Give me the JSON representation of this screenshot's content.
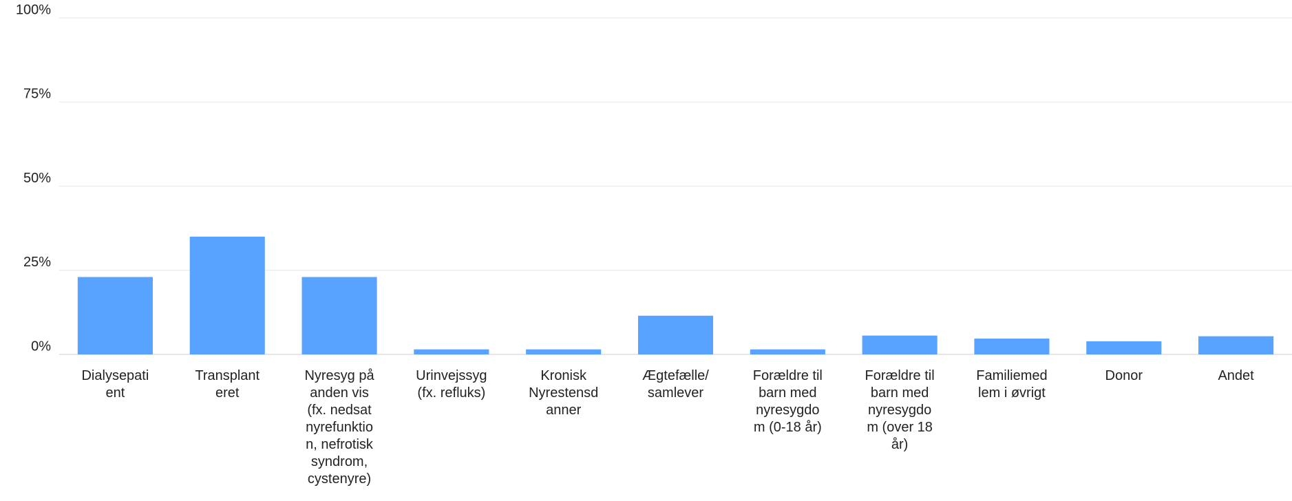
{
  "chart_data": {
    "type": "bar",
    "categories": [
      "Dialysepati\nent",
      "Transplant\neret",
      "Nyresyg på\nanden vis\n(fx. nedsat\nnyrefunktio\nn, nefrotisk\nsyndrom,\ncystenyre)",
      "Urinvejssyg\n(fx. refluks)",
      "Kronisk\nNyrestensd\nanner",
      "Ægtefælle/\nsamlever",
      "Forældre til\nbarn med\nnyresygdo\nm (0-18 år)",
      "Forældre til\nbarn med\nnyresygdo\nm (over 18\når)",
      "Familiemed\nlem i øvrigt",
      "Donor",
      "Andet"
    ],
    "values": [
      23,
      35,
      23,
      1.5,
      1.5,
      11.5,
      1.5,
      5.6,
      4.7,
      3.9,
      5.4
    ],
    "color": "#57a3ff",
    "ylim": [
      0,
      100
    ],
    "yticks": [
      {
        "value": 0,
        "label": "0%"
      },
      {
        "value": 25,
        "label": "25%"
      },
      {
        "value": 50,
        "label": "50%"
      },
      {
        "value": 75,
        "label": "75%"
      },
      {
        "value": 100,
        "label": "100%"
      }
    ],
    "grid": true
  }
}
